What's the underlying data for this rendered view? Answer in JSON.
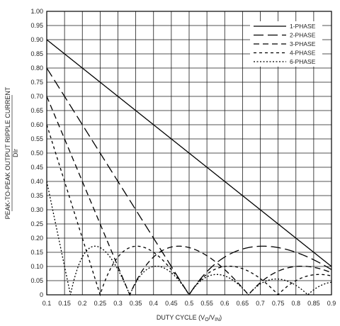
{
  "chart_data": {
    "type": "line",
    "title": "",
    "xlabel": "DUTY CYCLE (V",
    "xlabel_sub1": "O",
    "xlabel_mid": "/V",
    "xlabel_sub2": "IN",
    "xlabel_end": ")",
    "ylabel_line1": "PEAK-TO-PEAK OUTPUT RIPPLE CURRENT",
    "ylabel_line2": "DIr",
    "xlim": [
      0.1,
      0.9
    ],
    "ylim": [
      0,
      1.0
    ],
    "x_ticks": [
      "0.1",
      "0.15",
      "0.2",
      "0.25",
      "0.3",
      "0.35",
      "0.4",
      "0.45",
      "0.5",
      "0.55",
      "0.6",
      "0.65",
      "0.7",
      "0.75",
      "0.8",
      "0.85",
      "0.9"
    ],
    "y_ticks": [
      "0",
      "0.05",
      "0.10",
      "0.15",
      "0.20",
      "0.25",
      "0.30",
      "0.35",
      "0.40",
      "0.45",
      "0.50",
      "0.55",
      "0.60",
      "0.65",
      "0.70",
      "0.75",
      "0.80",
      "0.85",
      "0.90",
      "0.95",
      "1.00"
    ],
    "grid": true,
    "legend_position": "top-right",
    "series": [
      {
        "name": "1-PHASE",
        "phases": 1,
        "dash": "solid",
        "x": [
          0.1,
          0.9
        ],
        "y": [
          0.9,
          0.1
        ]
      },
      {
        "name": "2-PHASE",
        "phases": 2,
        "dash": "long",
        "x": [
          0.1,
          0.2,
          0.3,
          0.4,
          0.5,
          0.6,
          0.7,
          0.8,
          0.9
        ],
        "y": [
          0.8,
          0.6,
          0.4,
          0.2,
          0.0,
          0.133,
          0.171,
          0.15,
          0.089
        ]
      },
      {
        "name": "3-PHASE",
        "phases": 3,
        "dash": "medium",
        "x": [
          0.1,
          0.2,
          0.3,
          0.333,
          0.4,
          0.5,
          0.6,
          0.667,
          0.7,
          0.8,
          0.9
        ],
        "y": [
          0.7,
          0.4,
          0.1,
          0.0,
          0.1,
          0.167,
          0.1,
          0.0,
          0.048,
          0.075,
          0.067
        ]
      },
      {
        "name": "4-PHASE",
        "phases": 4,
        "dash": "short",
        "x": [
          0.1,
          0.2,
          0.25,
          0.3,
          0.4,
          0.5,
          0.6,
          0.7,
          0.75,
          0.8,
          0.9
        ],
        "y": [
          0.6,
          0.2,
          0.0,
          0.133,
          0.1,
          0.0,
          0.1,
          0.057,
          0.0,
          0.05,
          0.056
        ]
      },
      {
        "name": "6-PHASE",
        "phases": 6,
        "dash": "dotted",
        "x": [
          0.1,
          0.167,
          0.2,
          0.333,
          0.5,
          0.667,
          0.8,
          0.833,
          0.9
        ],
        "y": [
          0.4,
          0.0,
          0.083,
          0.0,
          0.0,
          0.0,
          0.042,
          0.0,
          0.044
        ]
      }
    ]
  }
}
